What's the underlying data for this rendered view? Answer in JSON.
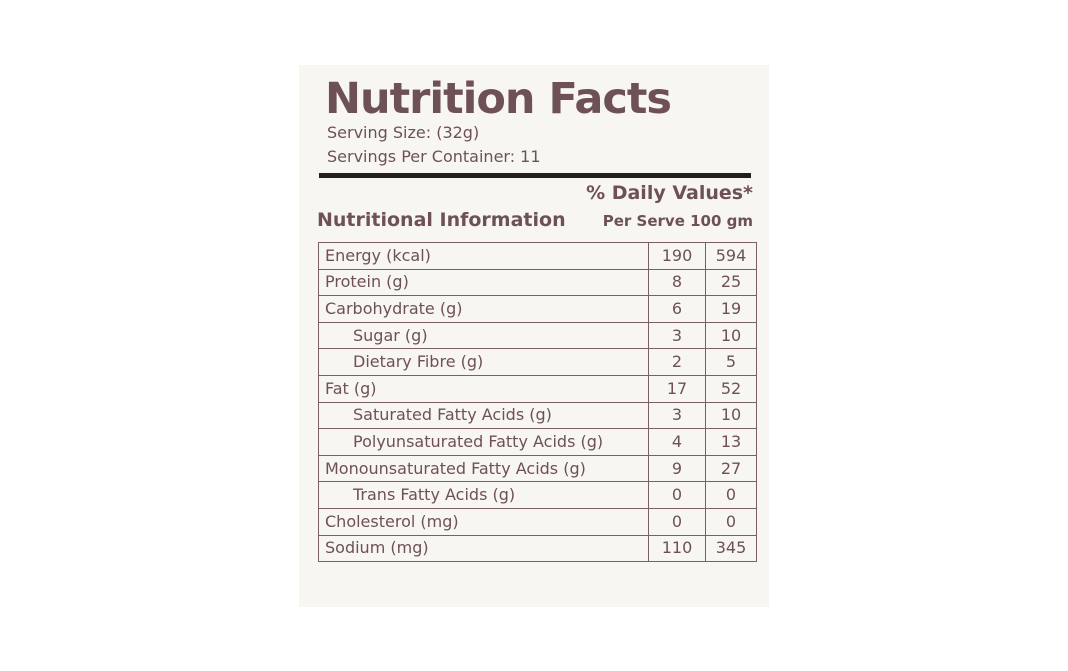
{
  "title": "Nutrition Facts",
  "serving_size": "Serving Size: (32g)",
  "servings_per_container": "Servings Per Container: 11",
  "daily_values_header": "% Daily Values*",
  "section_label": "Nutritional Information",
  "columns_label": "Per Serve 100 gm",
  "rows": [
    {
      "name": "Energy (kcal)",
      "per_serve": "190",
      "per_100g": "594",
      "indent": false
    },
    {
      "name": "Protein (g)",
      "per_serve": "8",
      "per_100g": "25",
      "indent": false
    },
    {
      "name": "Carbohydrate (g)",
      "per_serve": "6",
      "per_100g": "19",
      "indent": false
    },
    {
      "name": "Sugar (g)",
      "per_serve": "3",
      "per_100g": "10",
      "indent": true
    },
    {
      "name": "Dietary Fibre (g)",
      "per_serve": "2",
      "per_100g": "5",
      "indent": true
    },
    {
      "name": "Fat (g)",
      "per_serve": "17",
      "per_100g": "52",
      "indent": false
    },
    {
      "name": "Saturated Fatty Acids (g)",
      "per_serve": "3",
      "per_100g": "10",
      "indent": true
    },
    {
      "name": "Polyunsaturated Fatty Acids (g)",
      "per_serve": "4",
      "per_100g": "13",
      "indent": true
    },
    {
      "name": "Monounsaturated Fatty Acids (g)",
      "per_serve": "9",
      "per_100g": "27",
      "indent": false
    },
    {
      "name": "Trans Fatty Acids (g)",
      "per_serve": "0",
      "per_100g": "0",
      "indent": true
    },
    {
      "name": "Cholesterol (mg)",
      "per_serve": "0",
      "per_100g": "0",
      "indent": false
    },
    {
      "name": "Sodium (mg)",
      "per_serve": "110",
      "per_100g": "345",
      "indent": false
    }
  ],
  "colors": {
    "text": "#6e5156",
    "panel_background": "#f7f6f1",
    "rule": "#231f20",
    "table_border": "#7a5f63"
  }
}
